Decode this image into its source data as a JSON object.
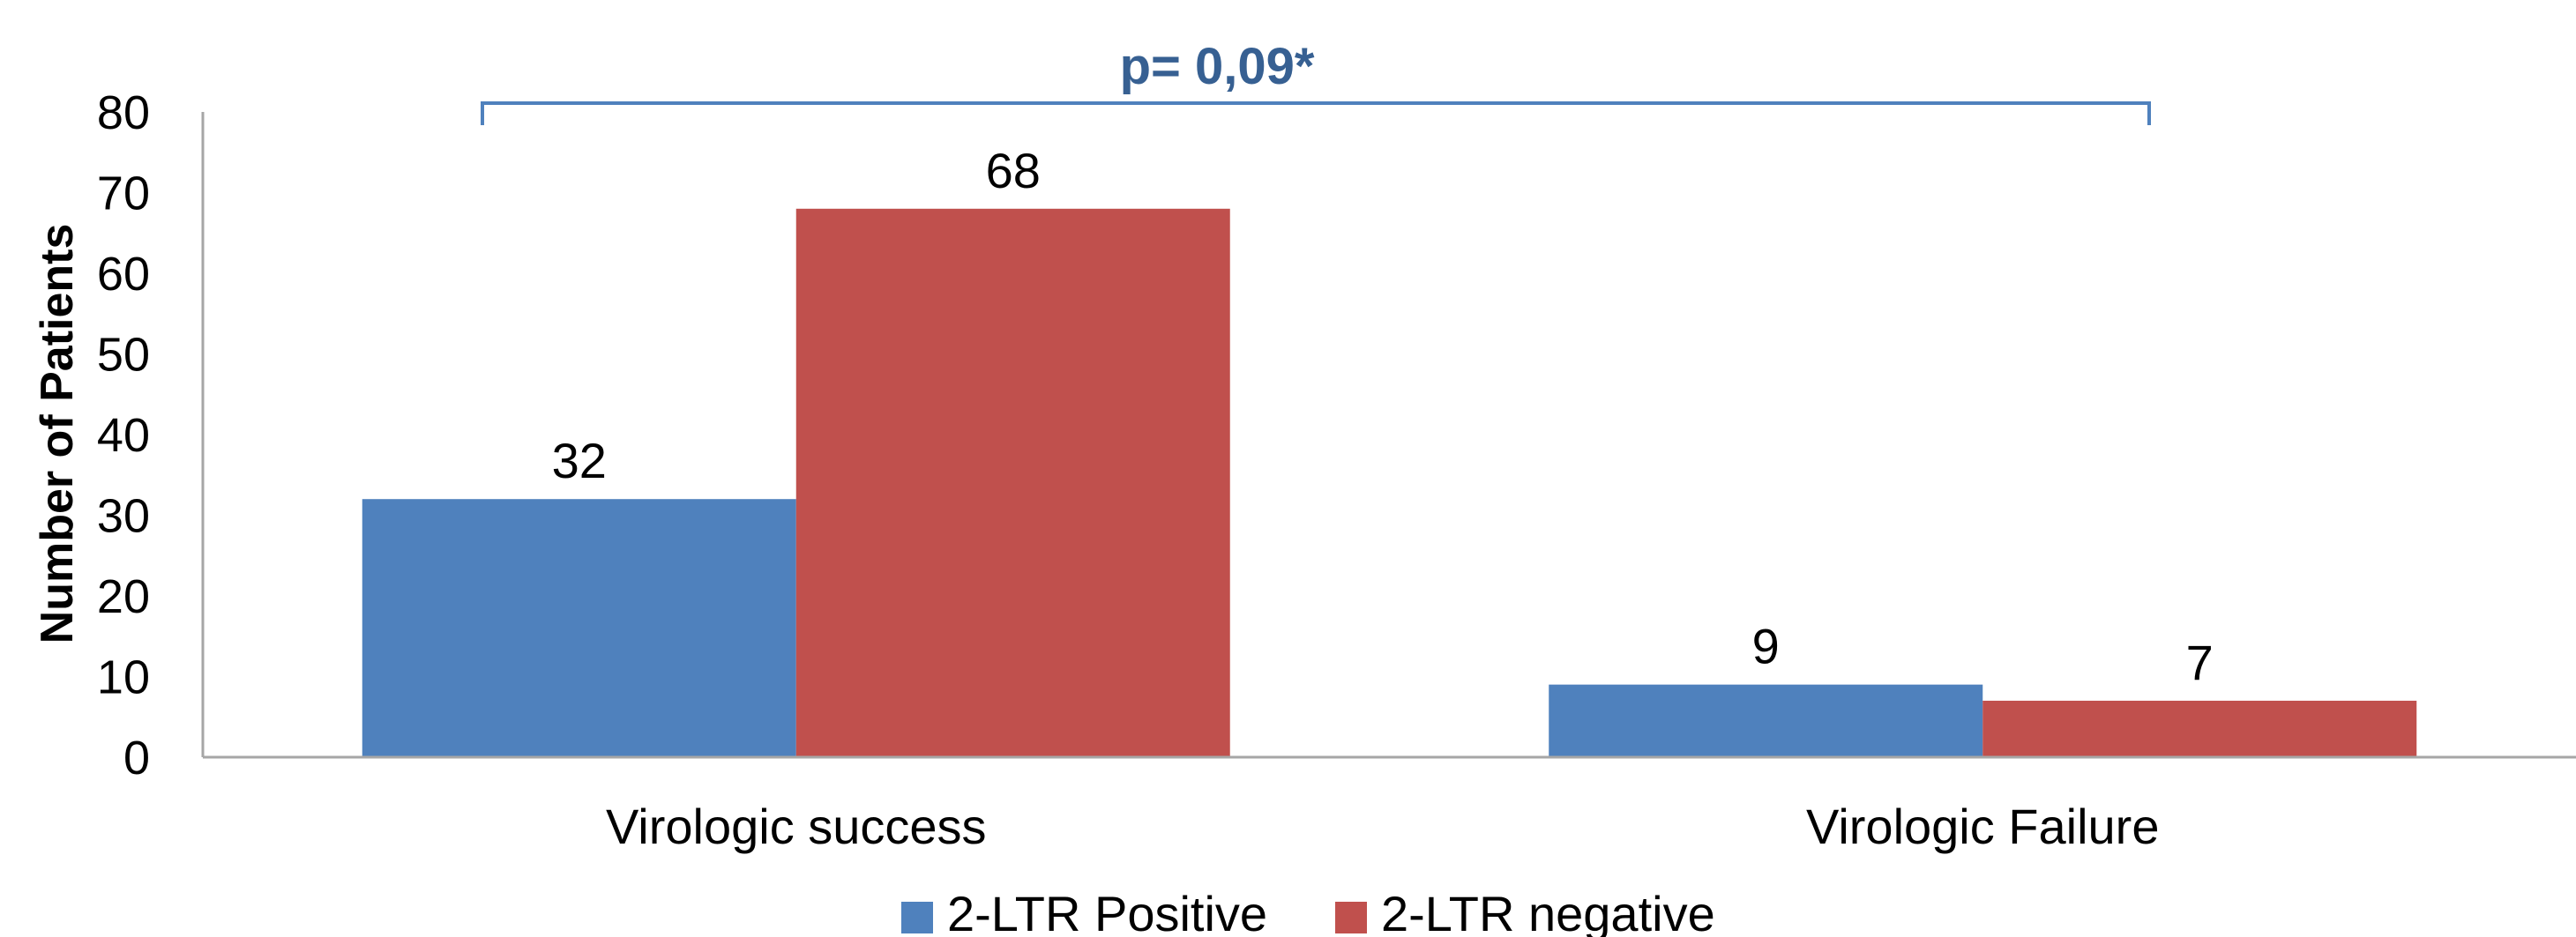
{
  "chart_data": {
    "type": "bar",
    "categories": [
      "Virologic success",
      "Virologic Failure"
    ],
    "series": [
      {
        "name": "2-LTR Positive",
        "values": [
          32,
          9
        ],
        "color": "#4F81BD"
      },
      {
        "name": "2-LTR negative",
        "values": [
          68,
          7
        ],
        "color": "#C0504D"
      }
    ],
    "ylabel": "Number of Patients",
    "ylim": [
      0,
      80
    ],
    "yticks": [
      0,
      10,
      20,
      30,
      40,
      50,
      60,
      70,
      80
    ],
    "grid": false,
    "legend_position": "bottom",
    "annotation": {
      "text": "p= 0,09*",
      "color": "#376092"
    }
  }
}
